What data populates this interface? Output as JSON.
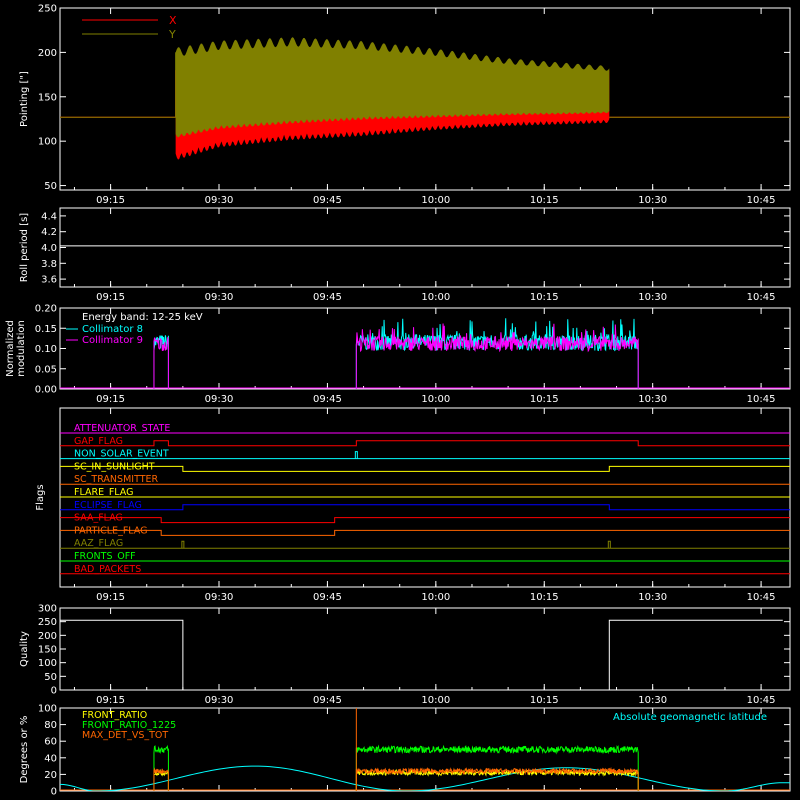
{
  "x_ticks": [
    "09:15",
    "09:30",
    "09:45",
    "10:00",
    "10:15",
    "10:30",
    "10:45"
  ],
  "x_tick_minutes": [
    555,
    570,
    585,
    600,
    615,
    630,
    645
  ],
  "x_range_minutes": [
    548,
    649
  ],
  "chart_data": [
    {
      "id": "pointing",
      "type": "area",
      "ylabel": "Pointing [\"]",
      "ylim": [
        45,
        250
      ],
      "yticks": [
        50,
        100,
        150,
        200,
        250
      ],
      "legend_position": "top-left",
      "series": [
        {
          "name": "X",
          "color": "#ff0000",
          "baseline": 127,
          "active_from": "09:24",
          "active_to": "10:24",
          "x": [
            "09:24",
            "09:30",
            "09:40",
            "09:50",
            "10:00",
            "10:10",
            "10:20",
            "10:24"
          ],
          "upper": [
            180,
            185,
            190,
            188,
            184,
            181,
            180,
            180
          ],
          "lower": [
            86,
            100,
            108,
            112,
            118,
            122,
            124,
            125
          ]
        },
        {
          "name": "Y",
          "color": "#808000",
          "baseline": 127,
          "active_from": "09:24",
          "active_to": "10:24",
          "x": [
            "09:24",
            "09:30",
            "09:40",
            "09:50",
            "10:00",
            "10:10",
            "10:20",
            "10:24"
          ],
          "upper": [
            200,
            208,
            212,
            208,
            200,
            190,
            184,
            182
          ],
          "lower": [
            108,
            118,
            124,
            128,
            130,
            132,
            133,
            134
          ]
        }
      ]
    },
    {
      "id": "roll-period",
      "type": "line",
      "ylabel": "Roll period [s]",
      "ylim": [
        3.5,
        4.5
      ],
      "yticks": [
        3.6,
        3.8,
        4.0,
        4.2,
        4.4
      ],
      "series": [
        {
          "name": "",
          "color": "#ffffff",
          "x": [
            "09:08",
            "10:48"
          ],
          "y": [
            4.02,
            4.02
          ]
        }
      ]
    },
    {
      "id": "modulation",
      "type": "line",
      "ylabel": [
        "Normalized",
        "modulation"
      ],
      "ylim": [
        0,
        0.2
      ],
      "yticks": [
        0.0,
        0.05,
        0.1,
        0.15,
        0.2
      ],
      "annotation": "Energy band: 12-25 keV",
      "legend_position": "top-left",
      "series": [
        {
          "name": "Collimator 8",
          "color": "#00ffff",
          "mean": 0.115,
          "noise": 0.02,
          "segments": [
            [
              "09:21",
              "09:23"
            ],
            [
              "09:49",
              "10:28"
            ]
          ]
        },
        {
          "name": "Collimator 9",
          "color": "#ff00ff",
          "mean": 0.112,
          "noise": 0.018,
          "segments": [
            [
              "09:21",
              "09:23"
            ],
            [
              "09:49",
              "10:28"
            ]
          ]
        }
      ]
    },
    {
      "id": "flags",
      "type": "line",
      "ylabel": "Flags",
      "rows": [
        {
          "name": "ATTENUATOR_STATE",
          "color": "#ff00ff",
          "steps": []
        },
        {
          "name": "GAP_FLAG",
          "color": "#ff0000",
          "steps": [
            [
              "09:21",
              1
            ],
            [
              "09:23",
              0
            ],
            [
              "09:49",
              1
            ],
            [
              "10:28",
              0
            ]
          ]
        },
        {
          "name": "NON_SOLAR_EVENT",
          "color": "#00ffff",
          "steps": [],
          "spikes": [
            "09:49"
          ]
        },
        {
          "name": "SC_IN_SUNLIGHT",
          "color": "#ffff00",
          "steps": [
            [
              "09:25",
              0
            ],
            [
              "10:24",
              1
            ]
          ],
          "start": 1
        },
        {
          "name": "SC_TRANSMITTER",
          "color": "#ff6600",
          "steps": []
        },
        {
          "name": "FLARE_FLAG",
          "color": "#ffff00",
          "steps": []
        },
        {
          "name": "ECLIPSE_FLAG",
          "color": "#0000ff",
          "steps": [
            [
              "09:25",
              1
            ],
            [
              "10:24",
              0
            ]
          ]
        },
        {
          "name": "SAA_FLAG",
          "color": "#ff0000",
          "steps": [
            [
              "09:22",
              0
            ],
            [
              "09:46",
              1
            ]
          ],
          "start": 1
        },
        {
          "name": "PARTICLE_FLAG",
          "color": "#ff6600",
          "steps": [
            [
              "09:22",
              0
            ],
            [
              "09:46",
              1
            ]
          ],
          "start": 1
        },
        {
          "name": "AAZ_FLAG",
          "color": "#808000",
          "steps": [],
          "spikes": [
            "09:25",
            "10:24"
          ]
        },
        {
          "name": "FRONTS_OFF",
          "color": "#00ff00",
          "steps": []
        },
        {
          "name": "BAD_PACKETS",
          "color": "#ff0000",
          "steps": []
        }
      ]
    },
    {
      "id": "quality",
      "type": "line",
      "ylabel": "Quality",
      "ylim": [
        0,
        300
      ],
      "yticks": [
        0,
        50,
        100,
        150,
        200,
        250,
        300
      ],
      "series": [
        {
          "name": "",
          "color": "#ffffff",
          "x": [
            "09:08",
            "09:25",
            "09:25",
            "10:24",
            "10:24",
            "10:48"
          ],
          "y": [
            255,
            255,
            0,
            0,
            255,
            255
          ]
        }
      ]
    },
    {
      "id": "geomag",
      "type": "line",
      "ylabel": "Degrees or %",
      "ylim": [
        0,
        100
      ],
      "yticks": [
        0,
        20,
        40,
        60,
        80,
        100
      ],
      "legend_position": "top-left",
      "right_label": "Absolute geomagnetic latitude",
      "right_label_color": "#00ffff",
      "series": [
        {
          "name": "FRONT_RATIO",
          "color": "#ffff00",
          "mean": 22,
          "noise": 3,
          "segments": [
            [
              "09:21",
              "09:23"
            ],
            [
              "09:49",
              "10:28"
            ]
          ]
        },
        {
          "name": "FRONT_RATIO_1225",
          "color": "#00ff00",
          "mean": 50,
          "noise": 4,
          "segments": [
            [
              "09:21",
              "09:23"
            ],
            [
              "09:49",
              "10:28"
            ]
          ]
        },
        {
          "name": "MAX_DET_VS_TOT",
          "color": "#ff6600",
          "mean": 24,
          "noise": 3,
          "segments": [
            [
              "09:21",
              "09:23"
            ],
            [
              "09:49",
              "10:28"
            ]
          ]
        }
      ],
      "geomag_latitude": {
        "color": "#00ffff",
        "x": [
          "09:08",
          "09:13",
          "09:35",
          "09:56",
          "10:18",
          "10:40",
          "10:48"
        ],
        "y": [
          8,
          0,
          30,
          0,
          28,
          0,
          10
        ]
      }
    }
  ]
}
